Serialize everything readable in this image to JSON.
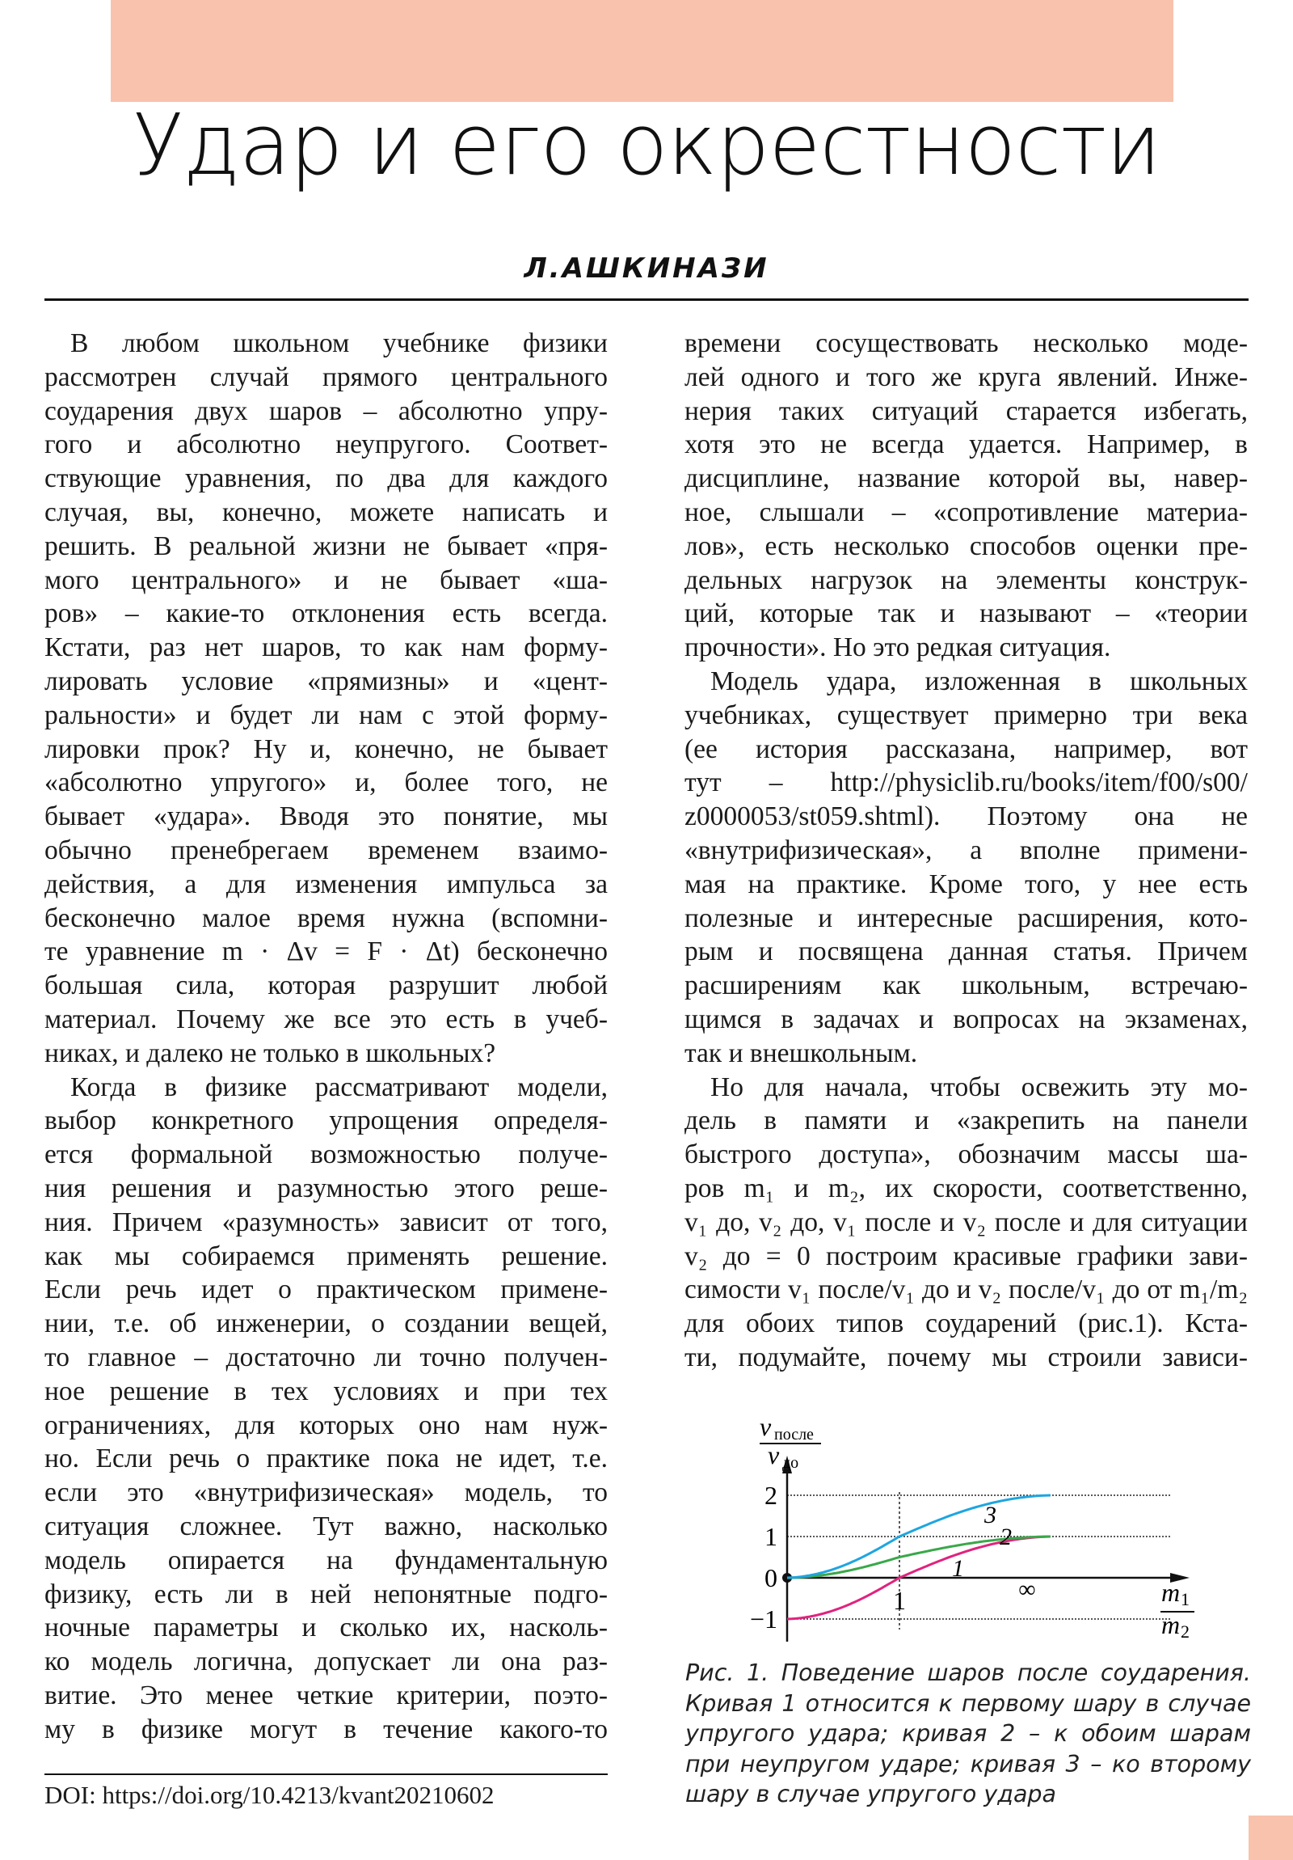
{
  "header": {
    "title": "Удар и его окрестности",
    "author": "Л.АШКИНАЗИ",
    "accent_color": "#f8c2ad"
  },
  "left_column": [
    "В любом школьном учебнике физики",
    "рассмотрен случай прямого центрального",
    "соударения двух шаров – абсолютно упру-",
    "гого и абсолютно неупругого. Соответ-",
    "ствующие уравнения, по два для каждого",
    "случая, вы, конечно, можете написать и",
    "решить. В реальной жизни не бывает «пря-",
    "мого центрального» и не бывает «ша-",
    "ров» – какие-то отклонения есть всегда.",
    "Кстати, раз нет шаров, то как нам форму-",
    "лировать условие «прямизны» и «цент-",
    "ральности» и будет ли нам с этой форму-",
    "лировки прок? Ну и, конечно, не бывает",
    "«абсолютно упругого» и, более того, не",
    "бывает «удара». Вводя это понятие, мы",
    "обычно пренебрегаем временем взаимо-",
    "действия, а для изменения импульса за",
    "бесконечно малое время нужна (вспомни-",
    "те уравнение m · Δv = F · Δt) бесконечно",
    "большая сила, которая разрушит любой",
    "материал. Почему же все это есть в учеб-",
    "никах, и далеко не только в школьных?",
    "Когда в физике рассматривают модели,",
    "выбор конкретного упрощения определя-",
    "ется формальной возможностью получе-",
    "ния решения и разумностью этого реше-",
    "ния. Причем «разумность» зависит от того,",
    "как мы собираемся применять решение.",
    "Если речь идет о практическом примене-",
    "нии, т.е. об инженерии, о создании вещей,",
    "то главное – достаточно ли точно получен-",
    "ное решение в тех условиях и при тех",
    "ограничениях, для которых оно нам нуж-",
    "но. Если речь о практике пока не идет, т.е.",
    "если это «внутрифизическая» модель, то",
    "ситуация сложнее. Тут важно, насколько",
    "модель опирается на фундаментальную",
    "физику, есть ли в ней непонятные подго-",
    "ночные параметры и сколько их, насколь-",
    "ко модель логична, допускает ли она раз-",
    "витие. Это менее четкие критерии, поэто-",
    "му в физике могут в течение какого-то"
  ],
  "right_column": [
    "времени сосуществовать несколько моде-",
    "лей одного и того же круга явлений. Инже-",
    "нерия таких ситуаций старается избегать,",
    "хотя это не всегда удается. Например, в",
    "дисциплине, название которой вы, навер-",
    "ное, слышали – «сопротивление материа-",
    "лов», есть несколько способов оценки пре-",
    "дельных нагрузок на элементы конструк-",
    "ций, которые так и называют – «теории",
    "прочности». Но это редкая ситуация.",
    "Модель удара, изложенная в школьных",
    "учебниках, существует примерно три века",
    "(ее история рассказана, например, вот",
    "тут – http://physiclib.ru/books/item/f00/s00/",
    "z0000053/st059.shtml). Поэтому она не",
    "«внутрифизическая», а вполне примени-",
    "мая на практике. Кроме того, у нее есть",
    "полезные и интересные расширения, кото-",
    "рым и посвящена данная статья. Причем",
    "расширениям как школьным, встречаю-",
    "щимся в задачах и вопросах на экзаменах,",
    "так и внешкольным.",
    "Но для начала, чтобы освежить эту мо-",
    "дель в памяти и «закрепить на панели",
    "быстрого доступа», обозначим массы ша-",
    "ров m₁ и m₂, их скорости, соответственно,",
    "v₁ до, v₂ до, v₁ после и v₂ после и для ситуации",
    "v₂ до = 0 построим красивые графики зави-",
    "симости v₁ после/v₁ до и v₂ после/v₁ до от m₁/m₂",
    "для обоих типов соударений (рис.1). Кста-",
    "ти, подумайте, почему мы строили зависи-"
  ],
  "figure": {
    "caption": "Рис. 1. Поведение шаров после соударения. Кривая 1 относится к первому шару в случае упругого удара; кривая 2 – к обоим шарам при неупругом ударе; кривая 3 – ко второму шару в случае упругого удара",
    "ylabel_num": "v",
    "ylabel_num_sub": "после",
    "ylabel_den": "v",
    "ylabel_den_sub": "до",
    "xlabel_num": "m",
    "xlabel_num_sub": "1",
    "xlabel_den": "m",
    "xlabel_den_sub": "2"
  },
  "chart_data": {
    "type": "line",
    "ylabel": "v после / v до",
    "xlabel": "m1 / m2",
    "x_ticks": [
      "0",
      "1",
      "∞"
    ],
    "y_ticks": [
      "−1",
      "0",
      "1",
      "2"
    ],
    "ylim": [
      -1,
      2
    ],
    "xlim": [
      0,
      "∞"
    ],
    "x": [
      0,
      0.25,
      0.5,
      1,
      2,
      4,
      "∞"
    ],
    "series": [
      {
        "name": "1",
        "color": "#e0237f",
        "values": [
          -1,
          -0.6,
          -0.333,
          0,
          0.333,
          0.6,
          1
        ]
      },
      {
        "name": "2",
        "color": "#3aa84a",
        "values": [
          0,
          0.2,
          0.333,
          0.5,
          0.667,
          0.8,
          1
        ]
      },
      {
        "name": "3",
        "color": "#1fa5e0",
        "values": [
          0,
          0.4,
          0.667,
          1,
          1.333,
          1.6,
          2
        ]
      }
    ],
    "grid": "dotted lines at y=-1,1,2 and x=1"
  },
  "footer": {
    "doi": "DOI: https://doi.org/10.4213/kvant20210602"
  }
}
